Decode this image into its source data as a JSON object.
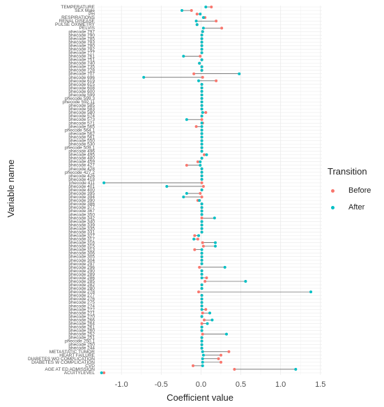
{
  "chart_data": {
    "type": "dumbbell",
    "xlabel": "Coefficient value",
    "ylabel": "Variable name",
    "xlim": [
      -1.3,
      1.52
    ],
    "x_ticks": [
      -1.0,
      -0.5,
      0.0,
      0.5,
      1.0,
      1.5
    ],
    "x_tick_labels": [
      "-1.0",
      "-0.5",
      "0.0",
      "0.5",
      "1.0",
      "1.5"
    ],
    "legend_title": "Transition",
    "series": [
      {
        "name": "Before",
        "color": "#f8766d"
      },
      {
        "name": "After",
        "color": "#00bfc4"
      }
    ],
    "rows": [
      {
        "label": "TEMPERATURE",
        "before": 0.13,
        "after": 0.06
      },
      {
        "label": "SEX Male",
        "before": -0.12,
        "after": -0.24
      },
      {
        "label": "PH",
        "before": -0.05,
        "after": -0.01
      },
      {
        "label": "RESPIRATIONS",
        "before": 0.05,
        "after": 0.03
      },
      {
        "label": "RENAL DISEASE",
        "before": 0.19,
        "after": -0.06
      },
      {
        "label": "PULSE OXIMETRY",
        "before": -0.05,
        "after": -0.05
      },
      {
        "label": "PELVIS",
        "before": 0.26,
        "after": 0.03
      },
      {
        "label": "phecode 797",
        "before": 0.02,
        "after": 0.02
      },
      {
        "label": "phecode 790",
        "before": 0.01,
        "after": 0.01
      },
      {
        "label": "phecode 785",
        "before": 0.01,
        "after": 0.01
      },
      {
        "label": "phecode 783",
        "before": 0.01,
        "after": 0.01
      },
      {
        "label": "phecode 780",
        "before": 0.01,
        "after": 0.01
      },
      {
        "label": "phecode 782",
        "before": 0.01,
        "after": 0.01
      },
      {
        "label": "phecode 777",
        "before": 0.01,
        "after": 0.01
      },
      {
        "label": "phecode 761",
        "before": -0.01,
        "after": -0.22
      },
      {
        "label": "phecode 751",
        "before": 0.01,
        "after": 0.01
      },
      {
        "label": "phecode 740",
        "before": -0.02,
        "after": -0.02
      },
      {
        "label": "phecode 735",
        "before": 0.01,
        "after": 0.01
      },
      {
        "label": "phecode 728",
        "before": 0.01,
        "after": 0.01
      },
      {
        "label": "phecode 707",
        "before": -0.09,
        "after": 0.48
      },
      {
        "label": "phecode 696",
        "before": 0.02,
        "after": -0.72
      },
      {
        "label": "phecode 619",
        "before": 0.19,
        "after": -0.03
      },
      {
        "label": "phecode 615",
        "before": 0.01,
        "after": 0.01
      },
      {
        "label": "phecode 608",
        "before": 0.01,
        "after": 0.01
      },
      {
        "label": "phecode 600",
        "before": 0.01,
        "after": 0.01
      },
      {
        "label": "phecode 599",
        "before": 0.01,
        "after": 0.01
      },
      {
        "label": "phecode 599.3",
        "before": 0.01,
        "after": 0.01
      },
      {
        "label": "phecode 592.11",
        "before": 0.01,
        "after": 0.01
      },
      {
        "label": "phecode 585",
        "before": 0.01,
        "after": 0.01
      },
      {
        "label": "phecode 583",
        "before": 0.01,
        "after": 0.01
      },
      {
        "label": "phecode 580",
        "before": 0.06,
        "after": 0.02
      },
      {
        "label": "phecode 574",
        "before": 0.01,
        "after": 0.01
      },
      {
        "label": "phecode 573",
        "before": 0.01,
        "after": -0.18
      },
      {
        "label": "phecode 571",
        "before": 0.02,
        "after": 0.01
      },
      {
        "label": "phecode 565",
        "before": -0.06,
        "after": 0.01
      },
      {
        "label": "phecode 564.1",
        "before": 0.01,
        "after": 0.01
      },
      {
        "label": "phecode 562",
        "before": 0.01,
        "after": 0.01
      },
      {
        "label": "phecode 561",
        "before": 0.01,
        "after": 0.01
      },
      {
        "label": "phecode 550",
        "before": 0.01,
        "after": 0.01
      },
      {
        "label": "phecode 530",
        "before": 0.01,
        "after": 0.01
      },
      {
        "label": "phecode 509.1",
        "before": 0.01,
        "after": 0.01
      },
      {
        "label": "phecode 496",
        "before": 0.01,
        "after": 0.01
      },
      {
        "label": "phecode 495",
        "before": 0.04,
        "after": 0.07
      },
      {
        "label": "phecode 480",
        "before": 0.01,
        "after": 0.01
      },
      {
        "label": "phecode 459",
        "before": -0.04,
        "after": -0.01
      },
      {
        "label": "phecode 427",
        "before": -0.18,
        "after": -0.01
      },
      {
        "label": "phecode 428",
        "before": 0.01,
        "after": 0.01
      },
      {
        "label": "phecode 427.2",
        "before": 0.01,
        "after": 0.01
      },
      {
        "label": "phecode 426",
        "before": 0.01,
        "after": 0.01
      },
      {
        "label": "phecode 418",
        "before": 0.01,
        "after": 0.01
      },
      {
        "label": "phecode 411",
        "before": 0.01,
        "after": -1.22
      },
      {
        "label": "phecode 401",
        "before": 0.03,
        "after": -0.43
      },
      {
        "label": "phecode 400",
        "before": 0.01,
        "after": 0.01
      },
      {
        "label": "phecode 395",
        "before": -0.01,
        "after": -0.18
      },
      {
        "label": "phecode 394",
        "before": 0.01,
        "after": -0.22
      },
      {
        "label": "phecode 390",
        "before": -0.04,
        "after": -0.02
      },
      {
        "label": "phecode 386",
        "before": 0.01,
        "after": 0.01
      },
      {
        "label": "phecode 377",
        "before": 0.01,
        "after": 0.01
      },
      {
        "label": "phecode 367",
        "before": 0.01,
        "after": 0.01
      },
      {
        "label": "phecode 350",
        "before": 0.01,
        "after": 0.01
      },
      {
        "label": "phecode 342",
        "before": 0.01,
        "after": 0.17
      },
      {
        "label": "phecode 340",
        "before": 0.01,
        "after": 0.01
      },
      {
        "label": "phecode 339",
        "before": 0.01,
        "after": 0.01
      },
      {
        "label": "phecode 335",
        "before": 0.01,
        "after": 0.01
      },
      {
        "label": "phecode 331",
        "before": 0.01,
        "after": 0.01
      },
      {
        "label": "phecode 327",
        "before": -0.08,
        "after": -0.03
      },
      {
        "label": "phecode 317",
        "before": -0.04,
        "after": -0.09
      },
      {
        "label": "phecode 316",
        "before": 0.02,
        "after": 0.18
      },
      {
        "label": "phecode 315",
        "before": 0.03,
        "after": 0.18
      },
      {
        "label": "phecode 313",
        "before": -0.08,
        "after": 0.01
      },
      {
        "label": "phecode 306",
        "before": 0.01,
        "after": 0.01
      },
      {
        "label": "phecode 305",
        "before": 0.01,
        "after": 0.01
      },
      {
        "label": "phecode 304",
        "before": 0.01,
        "after": 0.01
      },
      {
        "label": "phecode 297",
        "before": 0.01,
        "after": 0.01
      },
      {
        "label": "phecode 296",
        "before": -0.02,
        "after": 0.3
      },
      {
        "label": "phecode 290",
        "before": 0.01,
        "after": 0.01
      },
      {
        "label": "phecode 289",
        "before": 0.01,
        "after": 0.01
      },
      {
        "label": "phecode 286",
        "before": 0.07,
        "after": 0.01
      },
      {
        "label": "phecode 285",
        "before": 0.05,
        "after": 0.56
      },
      {
        "label": "phecode 282",
        "before": 0.01,
        "after": 0.01
      },
      {
        "label": "phecode 280",
        "before": 0.01,
        "after": 0.01
      },
      {
        "label": "phecode 278",
        "before": -0.03,
        "after": 1.38
      },
      {
        "label": "phecode 277",
        "before": 0.01,
        "after": 0.01
      },
      {
        "label": "phecode 276",
        "before": 0.01,
        "after": 0.01
      },
      {
        "label": "phecode 275",
        "before": 0.01,
        "after": 0.01
      },
      {
        "label": "phecode 274",
        "before": 0.01,
        "after": 0.01
      },
      {
        "label": "phecode 272",
        "before": 0.06,
        "after": 0.01
      },
      {
        "label": "phecode 271",
        "before": 0.02,
        "after": 0.11
      },
      {
        "label": "phecode 270",
        "before": 0.01,
        "after": 0.01
      },
      {
        "label": "phecode 266",
        "before": 0.04,
        "after": 0.14
      },
      {
        "label": "phecode 264",
        "before": 0.01,
        "after": 0.08
      },
      {
        "label": "phecode 261",
        "before": 0.01,
        "after": 0.01
      },
      {
        "label": "phecode 260",
        "before": 0.01,
        "after": 0.01
      },
      {
        "label": "phecode 252",
        "before": 0.02,
        "after": 0.32
      },
      {
        "label": "phecode 251",
        "before": 0.01,
        "after": 0.01
      },
      {
        "label": "phecode 250.1",
        "before": 0.01,
        "after": 0.01
      },
      {
        "label": "phecode 250",
        "before": 0.01,
        "after": 0.01
      },
      {
        "label": "phecode 244",
        "before": 0.01,
        "after": 0.01
      },
      {
        "label": "METASTATIC TUMOR",
        "before": 0.35,
        "after": 0.02
      },
      {
        "label": "HEART FAILURE",
        "before": 0.25,
        "after": 0.03
      },
      {
        "label": "DIABETES WO COMPLICATION",
        "before": 0.22,
        "after": 0.02
      },
      {
        "label": "DIABETES W COMPLICATION",
        "before": 0.25,
        "after": 0.02
      },
      {
        "label": "CVD",
        "before": -0.1,
        "after": 0.02
      },
      {
        "label": "AGE AT ED ADMISSION",
        "before": 0.42,
        "after": 1.19
      },
      {
        "label": "ACUITYLEVEL",
        "before": -1.22,
        "after": -1.25
      }
    ]
  }
}
